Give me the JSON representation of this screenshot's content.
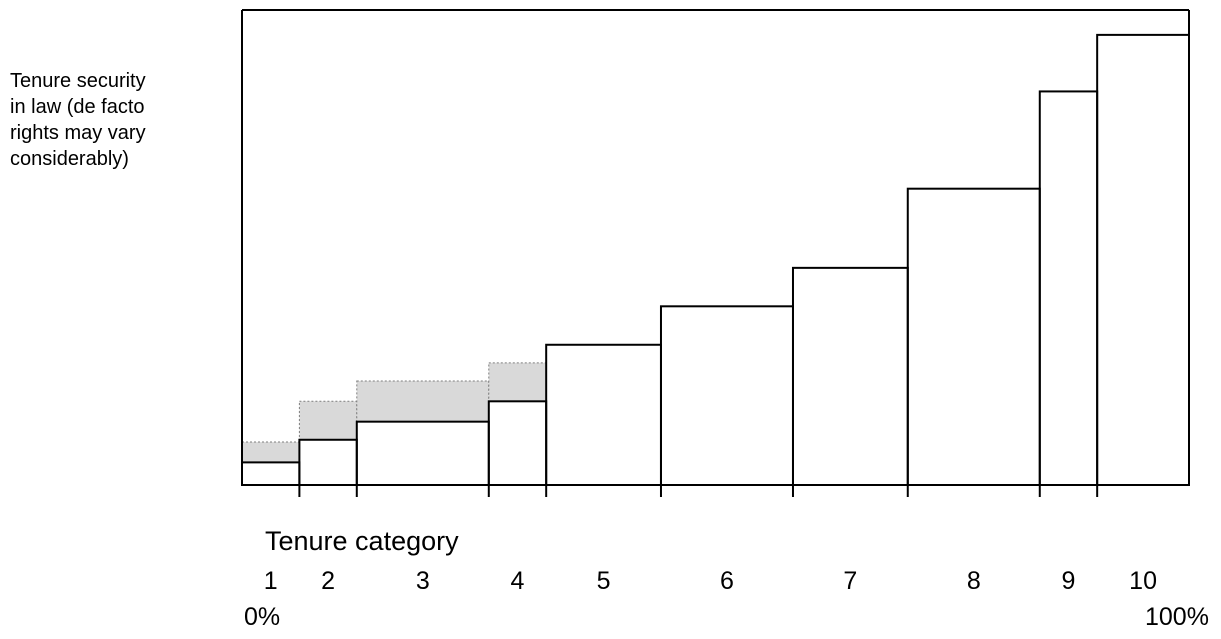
{
  "chart_data": {
    "type": "bar",
    "title": "",
    "ylabel": "Tenure security\nin law (de facto\nrights may vary\nconsiderably)",
    "xlabel": "Tenure category",
    "x_start_label": "0%",
    "x_end_label": "100%",
    "categories": [
      "1",
      "2",
      "3",
      "4",
      "5",
      "6",
      "7",
      "8",
      "9",
      "10"
    ],
    "widths": [
      1,
      1,
      2.3,
      1,
      2,
      2.3,
      2,
      2.3,
      1,
      1.6
    ],
    "values": [
      5,
      10,
      14,
      18.5,
      31,
      39.5,
      48,
      65.5,
      87,
      99.5
    ],
    "shaded_upper": [
      9.5,
      18.5,
      23,
      27,
      null,
      null,
      null,
      null,
      null,
      null
    ],
    "ylim": [
      0,
      105
    ],
    "colors": {
      "outline": "#000000",
      "shaded_fill": "#d9d9d9",
      "shaded_edge": "#7f7f7f",
      "bar_fill": "#ffffff"
    },
    "grid": false,
    "legend": "none"
  }
}
